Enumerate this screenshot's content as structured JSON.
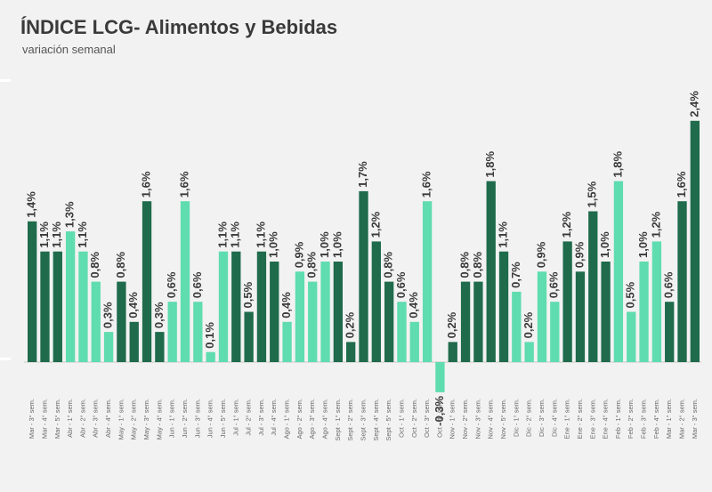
{
  "title": "ÍNDICE LCG- Alimentos y Bebidas",
  "subtitle": "variación semanal",
  "colors": {
    "dark": "#1f6b4c",
    "light": "#5fdcb0",
    "baseline": "#c8c8c8"
  },
  "chart_data": {
    "type": "bar",
    "title": "ÍNDICE LCG- Alimentos y Bebidas",
    "subtitle": "variación semanal",
    "xlabel": "",
    "ylabel": "",
    "grid": false,
    "ylim": [
      -0.3,
      2.4
    ],
    "categories": [
      "Mar - 3° sem.",
      "Mar - 4° sem.",
      "Mar - 5° sem.",
      "Abr - 1° sem.",
      "Abr - 2° sem.",
      "Abr - 3° sem.",
      "Abr - 4° sem.",
      "May - 1° sem.",
      "May - 2° sem.",
      "May - 3° sem.",
      "May - 4° sem.",
      "Jun - 1° sem.",
      "Jun - 2° sem.",
      "Jun - 3° sem.",
      "Jun - 4° sem.",
      "Jun - 5° sem.",
      "Jul - 1° sem.",
      "Jul - 2° sem.",
      "Jul - 3° sem.",
      "Jul - 4° sem.",
      "Ago - 1° sem.",
      "Ago - 2° sem.",
      "Ago - 3° sem.",
      "Ago - 4° sem.",
      "Sept - 1° sem.",
      "Sept - 2° sem.",
      "Sept - 3° sem.",
      "Sept - 4° sem.",
      "Sept - 5° sem.",
      "Oct - 1° sem.",
      "Oct - 2° sem.",
      "Oct - 3° sem.",
      "Oct - 4° sem.",
      "Nov - 1° sem.",
      "Nov - 2° sem.",
      "Nov - 3° sem.",
      "Nov - 4° sem.",
      "Nov - 5° sem.",
      "Dic - 1° sem.",
      "Dic - 2° sem.",
      "Dic - 3° sem.",
      "Dic - 4° sem.",
      "Ene - 1° sem.",
      "Ene - 2° sem.",
      "Ene - 3° sem.",
      "Ene - 4° sem.",
      "Feb - 1° sem.",
      "Feb - 2° sem.",
      "Feb - 3° sem.",
      "Feb - 4° sem.",
      "Mar - 1° sem.",
      "Mar - 2° sem.",
      "Mar - 3° sem."
    ],
    "values": [
      1.4,
      1.1,
      1.1,
      1.3,
      1.1,
      0.8,
      0.3,
      0.8,
      0.4,
      1.6,
      0.3,
      0.6,
      1.6,
      0.6,
      0.1,
      1.1,
      1.1,
      0.5,
      1.1,
      1.0,
      0.4,
      0.9,
      0.8,
      1.0,
      1.0,
      0.2,
      1.7,
      1.2,
      0.8,
      0.6,
      0.4,
      1.6,
      -0.3,
      0.2,
      0.8,
      0.8,
      1.8,
      1.1,
      0.7,
      0.2,
      0.9,
      0.6,
      1.2,
      0.9,
      1.5,
      1.0,
      1.8,
      0.5,
      1.0,
      1.2,
      0.6,
      1.6,
      2.4
    ],
    "labels": [
      "1,4%",
      "1,1%",
      "1,1%",
      "1,3%",
      "1,1%",
      "0,8%",
      "0,3%",
      "0,8%",
      "0,4%",
      "1,6%",
      "0,3%",
      "0,6%",
      "1,6%",
      "0,6%",
      "0,1%",
      "1,1%",
      "1,1%",
      "0,5%",
      "1,1%",
      "1,0%",
      "0,4%",
      "0,9%",
      "0,8%",
      "1,0%",
      "1,0%",
      "0,2%",
      "1,7%",
      "1,2%",
      "0,8%",
      "0,6%",
      "0,4%",
      "1,6%",
      "-0,3%",
      "0,2%",
      "0,8%",
      "0,8%",
      "1,8%",
      "1,1%",
      "0,7%",
      "0,2%",
      "0,9%",
      "0,6%",
      "1,2%",
      "0,9%",
      "1,5%",
      "1,0%",
      "1,8%",
      "0,5%",
      "1,0%",
      "1,2%",
      "0,6%",
      "1,6%",
      "2,4%"
    ],
    "bar_color_keys": [
      "dark",
      "dark",
      "dark",
      "light",
      "light",
      "light",
      "light",
      "dark",
      "dark",
      "dark",
      "dark",
      "light",
      "light",
      "light",
      "light",
      "light",
      "dark",
      "dark",
      "dark",
      "dark",
      "light",
      "light",
      "light",
      "light",
      "dark",
      "dark",
      "dark",
      "dark",
      "dark",
      "light",
      "light",
      "light",
      "light",
      "dark",
      "dark",
      "dark",
      "dark",
      "dark",
      "light",
      "light",
      "light",
      "light",
      "dark",
      "dark",
      "dark",
      "dark",
      "light",
      "light",
      "light",
      "light",
      "dark",
      "dark",
      "dark"
    ]
  }
}
